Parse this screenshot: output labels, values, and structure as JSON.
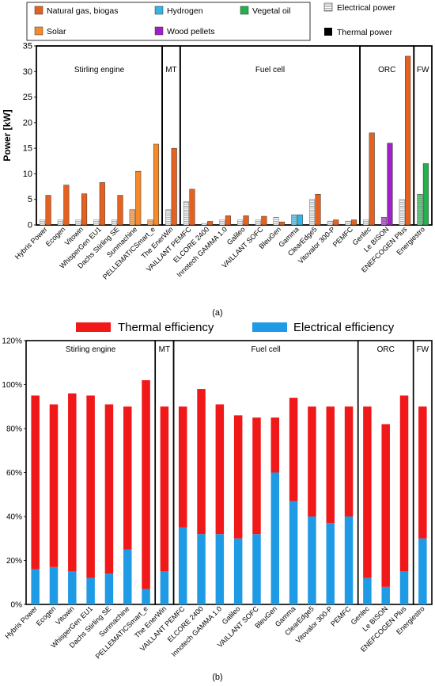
{
  "chart_data": [
    {
      "type": "bar",
      "ylabel": "Power [kW]",
      "ylim": [
        0,
        35
      ],
      "yticks": [
        0,
        5,
        10,
        15,
        20,
        25,
        30,
        35
      ],
      "grid": false,
      "legend_position": "top",
      "caption": "(a)",
      "categories": [
        "Hybris Power",
        "Ecogen",
        "Vitowin",
        "WhisperGen EU1",
        "Dachs Stirling SE",
        "Sunmachine",
        "PELLEMATICSmart_e",
        "The EnerWin",
        "VAILLANT PEMFC",
        "ELCORE 2400",
        "Innotech GAMMA 1.0",
        "Galileo",
        "VAILLANT SOFC",
        "BleuGen",
        "Gamma",
        "ClearEdge5",
        "Vitovalor 300-P",
        "PEMFC",
        "Genlec",
        "Le BISON",
        "ENEFCOGEN Plus",
        "Energiestro"
      ],
      "fuel": [
        "gas",
        "gas",
        "gas",
        "gas",
        "gas",
        "solar",
        "wood-orange",
        "gas",
        "gas",
        "gas",
        "gas",
        "gas",
        "gas",
        "gas",
        "hydrogen",
        "gas",
        "gas",
        "gas",
        "gas",
        "wood",
        "gas",
        "vegetal"
      ],
      "series": [
        {
          "name": "Electrical power",
          "values": [
            1,
            1,
            1,
            1,
            1,
            3,
            1,
            3,
            4.6,
            0.3,
            1,
            1,
            1,
            1.5,
            2,
            5,
            0.75,
            0.75,
            1,
            1.5,
            5,
            6
          ]
        },
        {
          "name": "Thermal power",
          "values": [
            5.8,
            7.8,
            6.1,
            8.3,
            5.8,
            10.5,
            15.8,
            15,
            7,
            0.7,
            1.8,
            1.8,
            1.7,
            0.6,
            2,
            6,
            1,
            1,
            18,
            16,
            33,
            12
          ]
        }
      ],
      "legend": {
        "fuels": [
          {
            "key": "gas",
            "label": "Natural gas, biogas",
            "color": "#e5611f"
          },
          {
            "key": "hydrogen",
            "label": "Hydrogen",
            "color": "#33b5e5"
          },
          {
            "key": "vegetal",
            "label": "Vegetal oil",
            "color": "#22b14c"
          },
          {
            "key": "solar",
            "label": "Solar",
            "color": "#f58a2a"
          },
          {
            "key": "wood",
            "label": "Wood pellets",
            "color": "#a020c8"
          }
        ],
        "types": [
          "Electrical power",
          "Thermal power"
        ]
      },
      "groups": [
        {
          "label": "Stirling engine",
          "start": 0,
          "end": 6
        },
        {
          "label": "MT",
          "start": 7,
          "end": 7
        },
        {
          "label": "Fuel cell",
          "start": 8,
          "end": 17
        },
        {
          "label": "ORC",
          "start": 18,
          "end": 20
        },
        {
          "label": "FW",
          "start": 21,
          "end": 21
        }
      ]
    },
    {
      "type": "bar",
      "stacked": true,
      "ylim": [
        0,
        120
      ],
      "ytick_labels": [
        "0%",
        "20%",
        "40%",
        "60%",
        "80%",
        "100%",
        "120%"
      ],
      "grid": false,
      "legend_position": "top",
      "caption": "(b)",
      "categories": [
        "Hybris Power",
        "Ecogen",
        "Vitowin",
        "WhisperGen EU1",
        "Dachs Stirling SE",
        "Sunmachine",
        "PELLEMATICSmart_e",
        "The EnerWin",
        "VAILLANT PEMFC",
        "ELCORE 2400",
        "Innotech GAMMA 1.0",
        "Galileo",
        "VAILLANT SOFC",
        "BleuGen",
        "Gamma",
        "ClearEdge5",
        "Vitovalor 300-P",
        "PEMFC",
        "Genlec",
        "Le BISON",
        "ENEFCOGEN Plus",
        "Energiestro"
      ],
      "series": [
        {
          "name": "Electrical efficiency",
          "color": "#1f9be6",
          "values": [
            16,
            17,
            15,
            12,
            14,
            25,
            7,
            15,
            35,
            32,
            32,
            30,
            32,
            60,
            47,
            40,
            37,
            40,
            12,
            8,
            15,
            30
          ]
        },
        {
          "name": "Thermal efficiency",
          "color": "#f01818",
          "values": [
            79,
            74,
            81,
            83,
            77,
            65,
            95,
            75,
            55,
            66,
            59,
            56,
            53,
            25,
            47,
            50,
            53,
            50,
            78,
            74,
            80,
            60
          ]
        }
      ],
      "groups": [
        {
          "label": "Stirling engine",
          "start": 0,
          "end": 6
        },
        {
          "label": "MT",
          "start": 7,
          "end": 7
        },
        {
          "label": "Fuel cell",
          "start": 8,
          "end": 17
        },
        {
          "label": "ORC",
          "start": 18,
          "end": 20
        },
        {
          "label": "FW",
          "start": 21,
          "end": 21
        }
      ]
    }
  ]
}
